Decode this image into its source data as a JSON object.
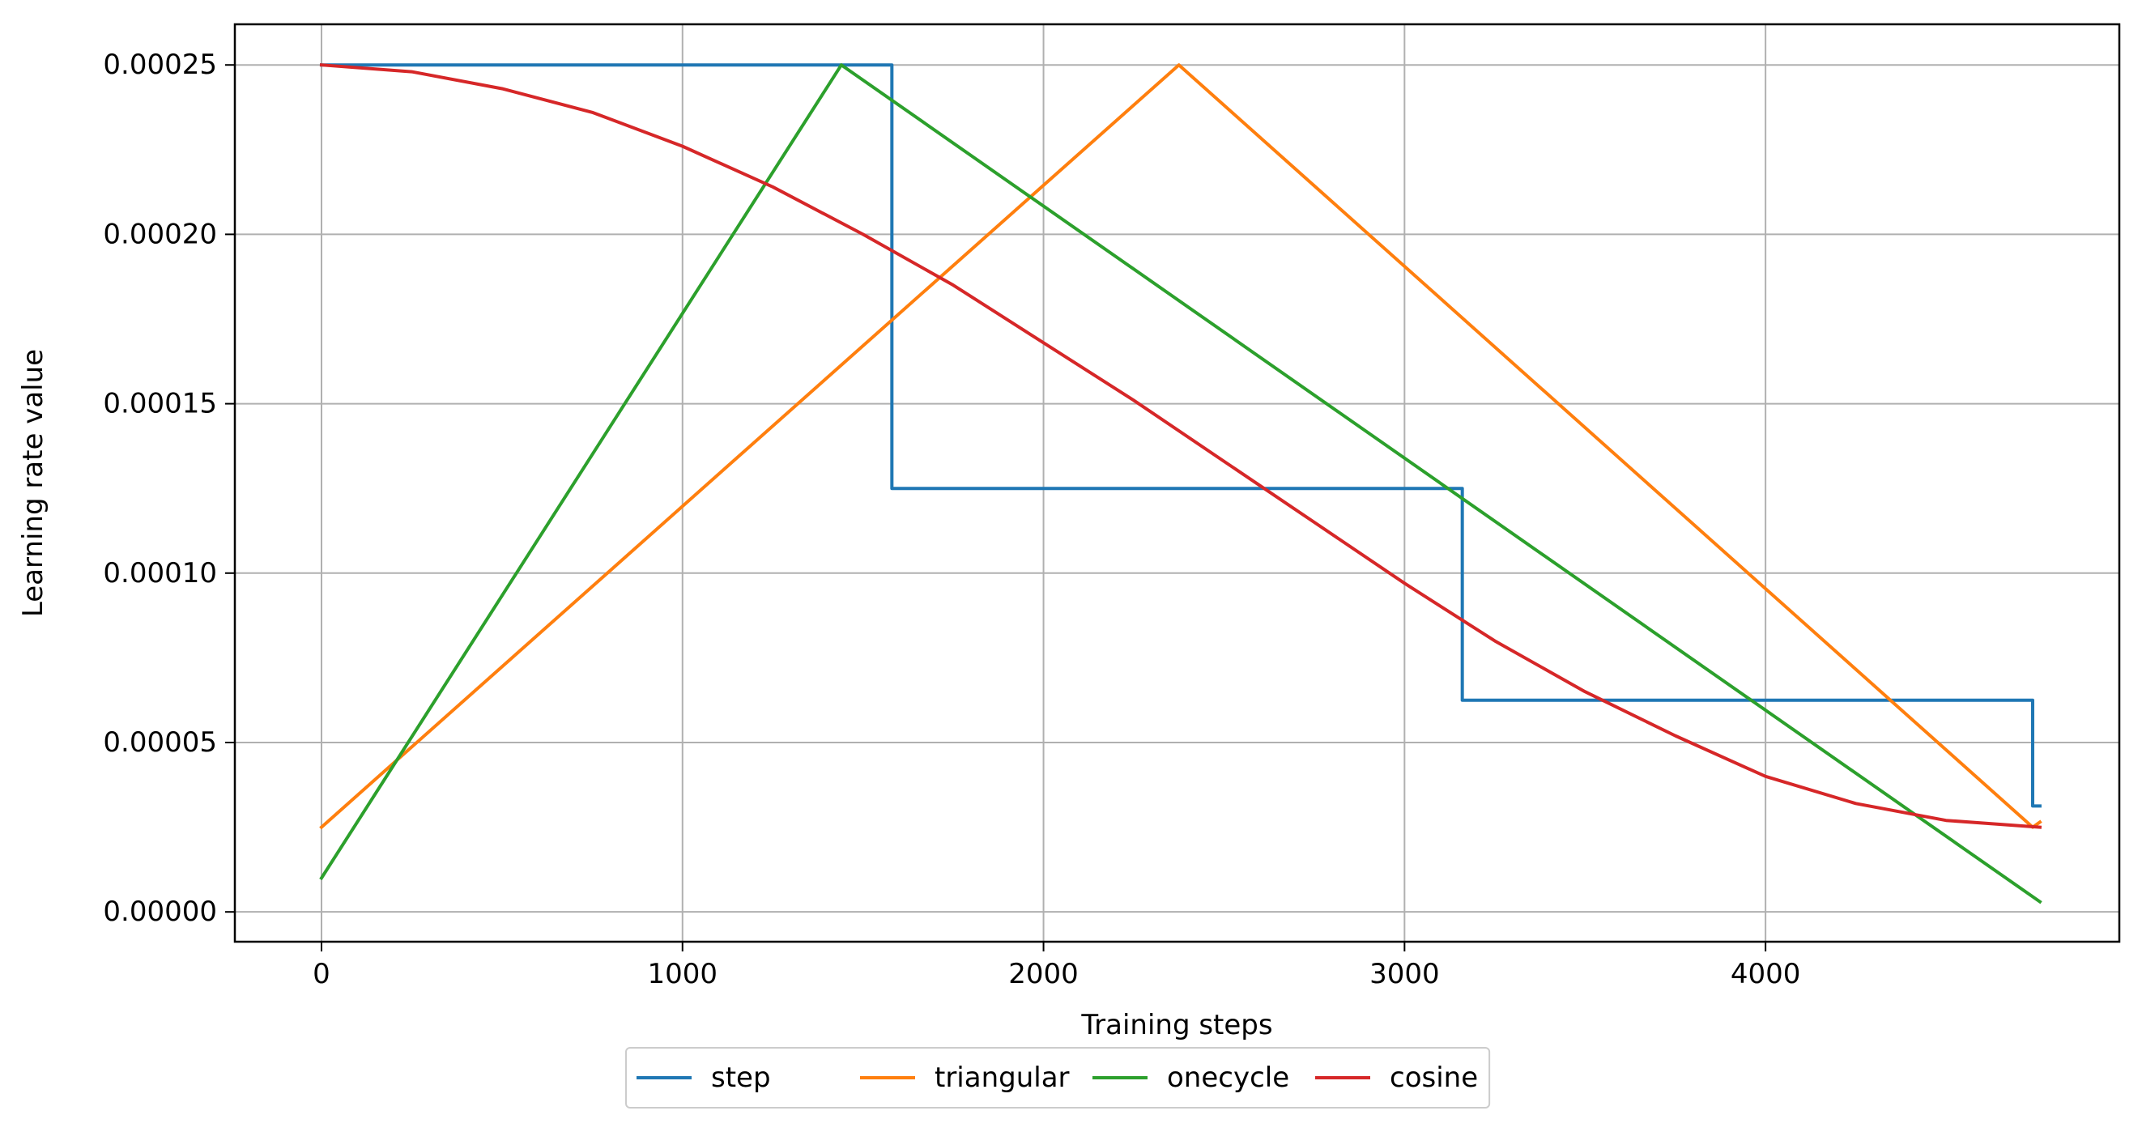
{
  "chart_data": {
    "type": "line",
    "title": "",
    "xlabel": "Training steps",
    "ylabel": "Learning rate value",
    "xlim": [
      -240,
      4980
    ],
    "ylim": [
      -8.8e-06,
      0.000262
    ],
    "xticks": [
      0,
      1000,
      2000,
      3000,
      4000
    ],
    "xtick_labels": [
      "0",
      "1000",
      "2000",
      "3000",
      "4000"
    ],
    "yticks": [
      0.0,
      5e-05,
      0.0001,
      0.00015,
      0.0002,
      0.00025
    ],
    "ytick_labels": [
      "0.00000",
      "0.00005",
      "0.00010",
      "0.00015",
      "0.00020",
      "0.00025"
    ],
    "grid": true,
    "legend_position": "bottom-center",
    "series": [
      {
        "name": "step",
        "color": "#1f77b4",
        "x": [
          0,
          1580,
          1580,
          3160,
          3160,
          4740,
          4740,
          4760
        ],
        "y": [
          0.00025,
          0.00025,
          0.000125,
          0.000125,
          6.25e-05,
          6.25e-05,
          3.125e-05,
          3.125e-05
        ]
      },
      {
        "name": "triangular",
        "color": "#ff7f0e",
        "x": [
          0,
          2375,
          4740,
          4760
        ],
        "y": [
          2.5e-05,
          0.00025,
          2.5e-05,
          2.65e-05
        ]
      },
      {
        "name": "onecycle",
        "color": "#2ca02c",
        "x": [
          0,
          1440,
          4760
        ],
        "y": [
          1e-05,
          0.00025,
          3e-06
        ]
      },
      {
        "name": "cosine",
        "color": "#d62728",
        "x": [
          0,
          250,
          500,
          750,
          1000,
          1250,
          1500,
          1750,
          2000,
          2250,
          2500,
          2750,
          3000,
          3250,
          3500,
          3750,
          4000,
          4250,
          4500,
          4760
        ],
        "y": [
          0.00025,
          0.000248,
          0.000243,
          0.000236,
          0.000226,
          0.000214,
          0.0002,
          0.000185,
          0.000168,
          0.000151,
          0.000133,
          0.000115,
          9.7e-05,
          8e-05,
          6.5e-05,
          5.2e-05,
          4e-05,
          3.2e-05,
          2.7e-05,
          2.5e-05
        ]
      }
    ]
  }
}
